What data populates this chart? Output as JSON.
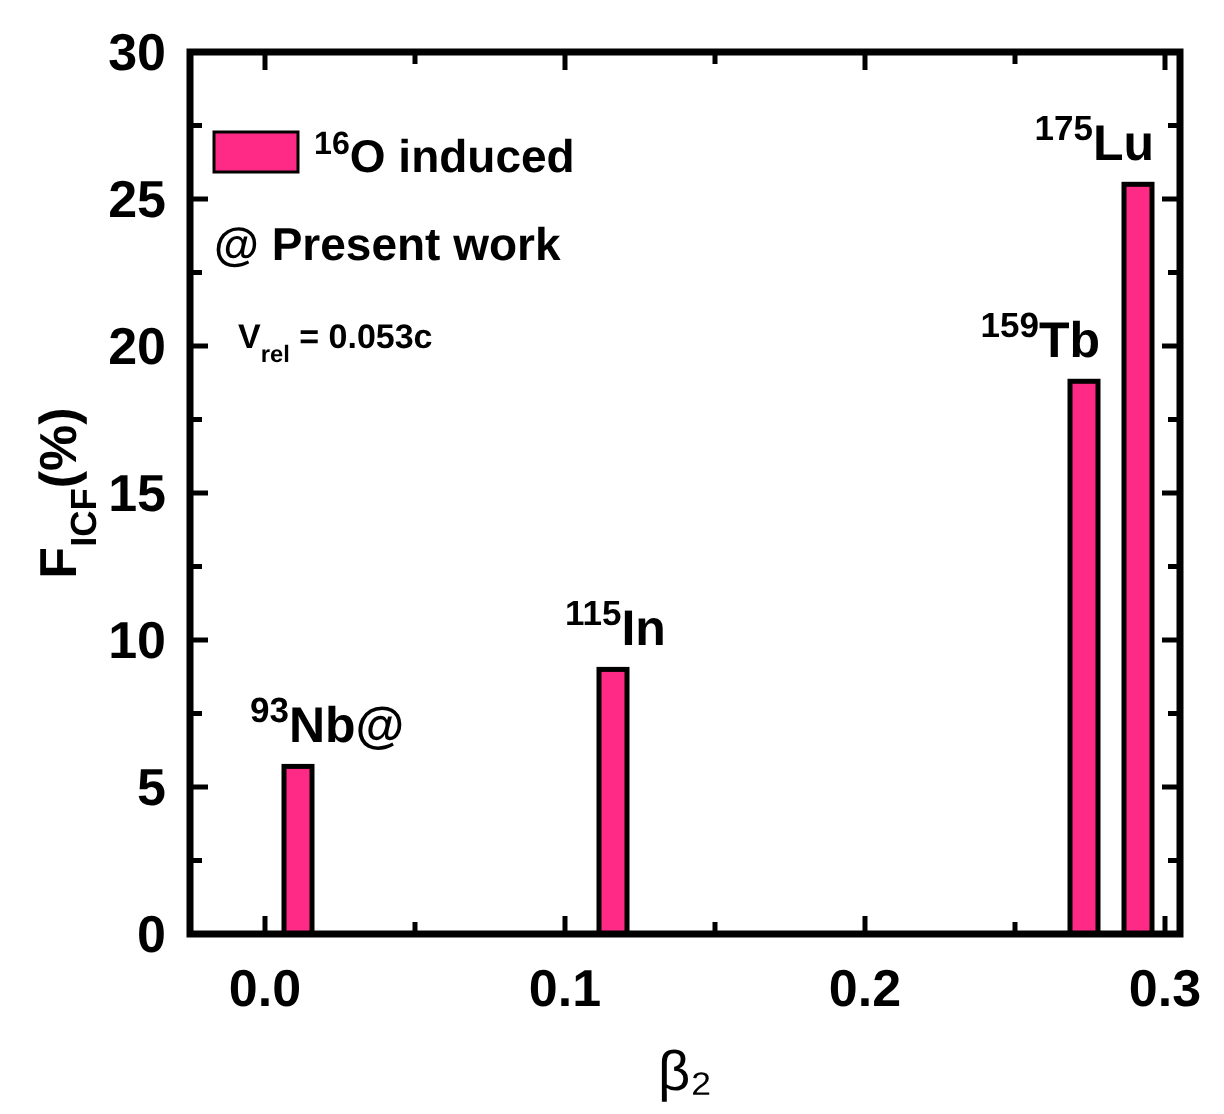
{
  "chart_data": {
    "type": "bar",
    "xlabel": "β₂",
    "ylabel": "F$_{ICF}$(%)",
    "x": [
      0.011,
      0.116,
      0.273,
      0.291
    ],
    "series": [
      {
        "name": "$^{16}$O induced",
        "color": "#ff2a85",
        "values": [
          5.7,
          9.0,
          18.8,
          25.5
        ]
      }
    ],
    "xlim": [
      -0.025,
      0.305
    ],
    "ylim": [
      0,
      30
    ],
    "xticks": [
      {
        "value": 0,
        "label": "0.0"
      },
      {
        "value": 0.05,
        "label": null
      },
      {
        "value": 0.1,
        "label": "0.1"
      },
      {
        "value": 0.15,
        "label": null
      },
      {
        "value": 0.2,
        "label": "0.2"
      },
      {
        "value": 0.25,
        "label": null
      },
      {
        "value": 0.3,
        "label": "0.3"
      }
    ],
    "yticks": [
      0,
      {
        "value": 2.5,
        "label": null
      },
      5,
      {
        "value": 7.5,
        "label": null
      },
      10,
      {
        "value": 12.5,
        "label": null
      },
      15,
      {
        "value": 17.5,
        "label": null
      },
      20,
      {
        "value": 22.5,
        "label": null
      },
      25,
      {
        "value": 27.5,
        "label": null
      },
      30
    ],
    "legend": "top left",
    "grid": false,
    "annotations": [
      {
        "text": "$^{93}$Nb@",
        "x": 0.011,
        "y": 5.7
      },
      {
        "text": "$^{115}$In",
        "x": 0.116,
        "y": 9.0
      },
      {
        "text": "$^{159}$Tb",
        "x": 0.273,
        "y": 18.8
      },
      {
        "text": "$^{175}$Lu",
        "x": 0.291,
        "y": 25.5
      },
      "@ Present work",
      "V$_{rel}$ = 0.053c"
    ]
  }
}
